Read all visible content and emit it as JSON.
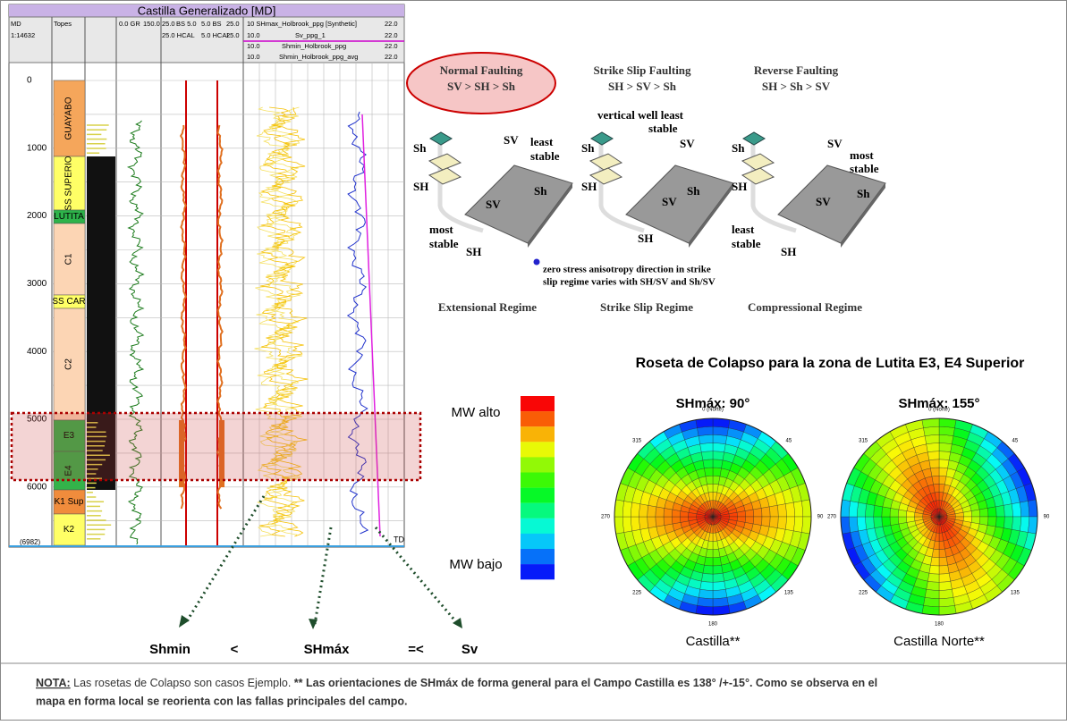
{
  "log_panel": {
    "title": "Castilla Generalizado [MD]",
    "header": [
      "MD",
      "Topes",
      "0.0 GR",
      "150.0",
      "25.0",
      "BS 5.0",
      "5.0 BS",
      "25.0",
      "1:14632",
      "25.0 HCAL",
      "5.0 HCAL",
      "25.0",
      "10 SHmax_Holbrook_ppg [Synthetic]",
      "22.0",
      "10.0",
      "Sv_ppg_1",
      "22.0",
      "10.0",
      "Shmin_Holbrook_ppg",
      "22.0",
      "10.0",
      "Shmin_Holbrook_ppg_avg",
      "22.0"
    ],
    "depth_ticks": [
      "0",
      "1000",
      "2000",
      "3000",
      "4000",
      "5000",
      "6000",
      "(6982)"
    ],
    "formations": [
      {
        "name": "GUAYABO",
        "color": "#f5a65b"
      },
      {
        "name": "SS SUPERIO",
        "color": "#ffff66"
      },
      {
        "name": "LUTITA",
        "color": "#2db34a"
      },
      {
        "name": "C1",
        "color": "#fcd5b4"
      },
      {
        "name": "SS CAR",
        "color": "#ffff66"
      },
      {
        "name": "C2",
        "color": "#fcd5b4"
      },
      {
        "name": "E3",
        "color": "#33b34a"
      },
      {
        "name": "E4",
        "color": "#33b34a"
      },
      {
        "name": "K1 Sup",
        "color": "#f08c3c"
      },
      {
        "name": "K2",
        "color": "#ffff66"
      }
    ],
    "td": "TD"
  },
  "regimes": {
    "headers": [
      [
        "Normal Faulting",
        "SV > SH > Sh"
      ],
      [
        "Strike Slip Faulting",
        "SH > SV > Sh"
      ],
      [
        "Reverse Faulting",
        "SH > Sh > SV"
      ]
    ],
    "diagrams": [
      {
        "labels": [
          "Sh",
          "SH",
          "SV",
          "least",
          "stable",
          "Sh",
          "SV",
          "most",
          "stable",
          "SH"
        ]
      },
      {
        "labels": [
          "Sh",
          "SH",
          "SV",
          "SV",
          "SH",
          "vertical well least",
          "stable",
          "Sh"
        ]
      },
      {
        "labels": [
          "Sh",
          "SH",
          "SV",
          "most",
          "stable",
          "Sh",
          "SV",
          "least",
          "stable",
          "SH"
        ]
      }
    ],
    "note": [
      "zero stress anisotropy direction in strike",
      "slip regime varies with SH/SV and Sh/SV"
    ],
    "names": [
      "Extensional Regime",
      "Strike Slip Regime",
      "Compressional Regime"
    ]
  },
  "rosette": {
    "title": "Roseta de Colapso para la zona de Lutita E3, E4 Superior",
    "high": "MW alto",
    "low": "MW bajo",
    "items": [
      {
        "subtitle": "SHmáx: 90°",
        "caption": "Castilla**"
      },
      {
        "subtitle": "SHmáx: 155°",
        "caption": "Castilla Norte**"
      }
    ],
    "directions": [
      "0 (Norte)",
      "45",
      "90",
      "135",
      "180",
      "225",
      "270",
      "315"
    ]
  },
  "relation": [
    "Shmin",
    "<",
    "SHmáx",
    "=<",
    "Sv"
  ],
  "note": {
    "label": "NOTA:",
    "text": " Las rosetas de Colapso son casos Ejemplo. ",
    "bold1": "** Las orientaciones de SHmáx de forma general para  el Campo Castilla es 138° /+-15°. Como se observa en el",
    "bold2": "mapa en forma local se reorienta con las fallas principales del campo."
  }
}
